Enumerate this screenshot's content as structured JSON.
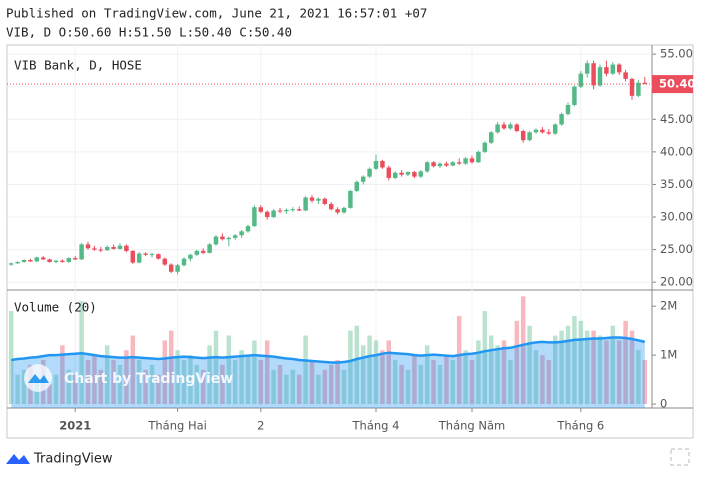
{
  "header": {
    "published": "Published on TradingView.com, June 21, 2021 16:57:01 +07",
    "ohlc": "VIB, D O:50.60 H:51.50 L:50.40 C:50.40"
  },
  "chart_data": {
    "type": "candlestick",
    "title": "VIB Bank, D, HOSE",
    "categories": [
      null,
      null,
      null,
      null,
      null,
      null,
      null,
      null,
      null,
      null,
      "2021",
      null,
      null,
      null,
      null,
      null,
      null,
      null,
      null,
      null,
      null,
      null,
      null,
      null,
      null,
      null,
      "Tháng Hai",
      null,
      null,
      null,
      null,
      null,
      null,
      null,
      null,
      null,
      null,
      null,
      null,
      "2",
      null,
      null,
      null,
      null,
      null,
      null,
      null,
      null,
      null,
      null,
      null,
      null,
      null,
      null,
      null,
      null,
      null,
      "Tháng 4",
      null,
      null,
      null,
      null,
      null,
      null,
      null,
      null,
      null,
      null,
      null,
      null,
      null,
      null,
      "Tháng Năm",
      null,
      null,
      null,
      null,
      null,
      null,
      null,
      null,
      null,
      null,
      null,
      null,
      null,
      null,
      null,
      null,
      "Tháng 6",
      null,
      null,
      null,
      null,
      null,
      null,
      null,
      null,
      null,
      null
    ],
    "open": [
      22.7,
      22.9,
      23.1,
      23.4,
      23.2,
      23.8,
      23.5,
      23.1,
      23.3,
      23.1,
      23.7,
      23.5,
      25.8,
      25.2,
      25.0,
      24.9,
      25.4,
      25.1,
      25.6,
      24.8,
      23.0,
      24.4,
      24.2,
      24.3,
      23.6,
      22.7,
      21.6,
      22.6,
      23.6,
      24.2,
      24.8,
      24.5,
      25.8,
      27.0,
      26.6,
      26.8,
      27.2,
      27.8,
      28.6,
      31.5,
      30.8,
      30.0,
      31.0,
      30.9,
      31.1,
      31.2,
      31.0,
      33.0,
      32.5,
      32.8,
      32.0,
      31.2,
      30.7,
      31.4,
      34.0,
      35.4,
      36.2,
      37.4,
      38.6,
      37.6,
      36.0,
      36.8,
      36.5,
      36.9,
      36.2,
      37.0,
      38.4,
      37.8,
      38.2,
      37.9,
      38.4,
      38.2,
      39.0,
      38.4,
      40.0,
      41.4,
      43.0,
      44.2,
      43.6,
      44.2,
      43.2,
      41.8,
      43.0,
      43.4,
      43.0,
      42.8,
      44.2,
      45.8,
      47.2,
      50.0,
      52.0,
      53.6,
      50.2,
      53.0,
      52.0,
      53.4,
      52.2,
      51.2,
      48.6,
      50.6
    ],
    "high": [
      23.0,
      23.2,
      23.5,
      23.6,
      23.9,
      24.0,
      23.6,
      23.4,
      23.5,
      23.8,
      24.0,
      26.0,
      26.2,
      25.6,
      25.4,
      25.6,
      25.8,
      26.0,
      25.8,
      24.9,
      24.6,
      24.6,
      24.5,
      24.4,
      23.8,
      22.9,
      22.8,
      23.8,
      24.4,
      25.0,
      25.2,
      26.0,
      27.2,
      27.5,
      27.0,
      27.4,
      28.0,
      28.8,
      31.8,
      31.8,
      31.0,
      31.2,
      31.4,
      31.3,
      31.5,
      31.6,
      33.2,
      33.4,
      33.0,
      33.0,
      32.3,
      31.5,
      31.6,
      34.2,
      35.6,
      36.4,
      37.6,
      39.6,
      38.8,
      37.9,
      37.0,
      37.2,
      37.0,
      37.1,
      37.2,
      38.6,
      38.6,
      38.4,
      38.5,
      38.6,
      39.0,
      39.2,
      39.4,
      40.2,
      41.6,
      43.2,
      44.6,
      44.6,
      44.5,
      44.4,
      43.4,
      43.2,
      43.6,
      43.8,
      43.5,
      44.4,
      46.0,
      47.6,
      50.2,
      52.4,
      54.0,
      54.0,
      53.4,
      54.0,
      53.8,
      53.6,
      52.6,
      51.4,
      51.0,
      51.5
    ],
    "low": [
      22.5,
      22.8,
      23.0,
      23.1,
      23.1,
      23.4,
      23.0,
      22.9,
      23.0,
      23.0,
      23.4,
      23.4,
      25.0,
      24.8,
      24.6,
      24.8,
      25.0,
      25.0,
      24.6,
      22.8,
      22.9,
      24.0,
      23.8,
      23.5,
      22.5,
      21.4,
      21.2,
      22.4,
      23.2,
      24.0,
      24.3,
      24.4,
      25.6,
      26.4,
      25.5,
      26.5,
      26.8,
      27.6,
      28.5,
      30.6,
      29.6,
      29.8,
      30.6,
      30.5,
      30.8,
      30.9,
      30.9,
      32.2,
      32.0,
      31.8,
      31.0,
      30.4,
      30.5,
      31.3,
      33.8,
      35.0,
      36.0,
      37.2,
      37.4,
      35.6,
      35.8,
      36.2,
      36.3,
      36.0,
      36.0,
      36.8,
      37.6,
      37.5,
      37.7,
      37.8,
      38.0,
      38.0,
      38.2,
      38.3,
      39.8,
      41.2,
      42.8,
      43.4,
      43.4,
      43.0,
      41.4,
      41.6,
      42.8,
      42.8,
      42.6,
      42.6,
      44.0,
      45.6,
      47.0,
      49.8,
      51.4,
      49.6,
      50.0,
      51.6,
      51.8,
      51.8,
      50.8,
      48.0,
      48.4,
      50.4
    ],
    "close": [
      22.9,
      23.1,
      23.4,
      23.2,
      23.8,
      23.5,
      23.1,
      23.3,
      23.1,
      23.7,
      23.5,
      25.8,
      25.2,
      25.0,
      24.9,
      25.4,
      25.1,
      25.6,
      24.8,
      23.0,
      24.4,
      24.2,
      24.3,
      23.6,
      22.7,
      21.6,
      22.6,
      23.6,
      24.2,
      24.8,
      24.5,
      25.8,
      27.0,
      26.6,
      26.8,
      27.2,
      27.8,
      28.6,
      31.5,
      30.8,
      30.0,
      31.0,
      30.9,
      31.1,
      31.2,
      31.0,
      33.0,
      32.5,
      32.8,
      32.0,
      31.2,
      30.7,
      31.4,
      34.0,
      35.4,
      36.2,
      37.4,
      38.6,
      37.6,
      36.0,
      36.8,
      36.5,
      36.9,
      36.2,
      37.0,
      38.4,
      37.8,
      38.2,
      37.9,
      38.4,
      38.2,
      39.0,
      38.4,
      40.0,
      41.4,
      43.0,
      44.2,
      43.6,
      44.2,
      43.2,
      41.8,
      43.0,
      43.4,
      43.0,
      42.8,
      44.2,
      45.8,
      47.2,
      50.0,
      52.0,
      53.6,
      50.2,
      53.0,
      52.0,
      53.4,
      52.2,
      51.2,
      48.6,
      50.6,
      50.4
    ],
    "up_color": "#53b987",
    "down_color": "#eb4d5c",
    "grid": true,
    "ylim": [
      18.8,
      56.4
    ],
    "yticks": [
      {
        "value": 20,
        "label": "20.00"
      },
      {
        "value": 25,
        "label": "25.00"
      },
      {
        "value": 30,
        "label": "30.00"
      },
      {
        "value": 35,
        "label": "35.00"
      },
      {
        "value": 40,
        "label": "40.00"
      },
      {
        "value": 45,
        "label": "45.00"
      },
      {
        "value": 50,
        "label": "50.00"
      },
      {
        "value": 55,
        "label": "55.00"
      }
    ],
    "last_price": {
      "value": 50.4,
      "label": "50.40"
    },
    "volume": {
      "title": "Volume (20)",
      "ma_color": "#2196f3",
      "values": [
        1900000,
        600000,
        700000,
        800000,
        500000,
        900000,
        400000,
        600000,
        1200000,
        700000,
        600000,
        2100000,
        900000,
        1000000,
        700000,
        1200000,
        900000,
        800000,
        1100000,
        1400000,
        900000,
        700000,
        800000,
        600000,
        1300000,
        1500000,
        1100000,
        900000,
        1000000,
        800000,
        700000,
        1200000,
        1500000,
        800000,
        1400000,
        900000,
        1100000,
        1000000,
        1300000,
        900000,
        1300000,
        700000,
        800000,
        600000,
        700000,
        600000,
        1400000,
        900000,
        600000,
        700000,
        800000,
        900000,
        700000,
        1500000,
        1600000,
        1200000,
        1400000,
        1300000,
        1100000,
        1300000,
        900000,
        800000,
        700000,
        1000000,
        800000,
        1200000,
        900000,
        800000,
        1000000,
        900000,
        1800000,
        1100000,
        900000,
        1300000,
        1900000,
        1400000,
        1200000,
        1300000,
        900000,
        1700000,
        2200000,
        1600000,
        1100000,
        1000000,
        900000,
        1400000,
        1500000,
        1600000,
        1800000,
        1700000,
        1500000,
        1500000,
        1400000,
        1300000,
        1600000,
        1300000,
        1700000,
        1500000,
        1100000,
        900000
      ],
      "ma": [
        900000,
        920000,
        930000,
        950000,
        960000,
        980000,
        1000000,
        1000000,
        1010000,
        1020000,
        1030000,
        1040000,
        1020000,
        1000000,
        980000,
        970000,
        960000,
        950000,
        950000,
        960000,
        950000,
        940000,
        930000,
        920000,
        930000,
        950000,
        960000,
        970000,
        960000,
        950000,
        940000,
        950000,
        960000,
        950000,
        960000,
        970000,
        980000,
        990000,
        1000000,
        990000,
        980000,
        970000,
        950000,
        930000,
        920000,
        900000,
        890000,
        880000,
        870000,
        860000,
        850000,
        850000,
        860000,
        880000,
        920000,
        950000,
        980000,
        1000000,
        1030000,
        1050000,
        1040000,
        1030000,
        1020000,
        1000000,
        990000,
        1000000,
        1010000,
        1000000,
        990000,
        980000,
        1000000,
        1020000,
        1030000,
        1050000,
        1080000,
        1100000,
        1120000,
        1140000,
        1150000,
        1180000,
        1210000,
        1240000,
        1260000,
        1270000,
        1260000,
        1260000,
        1270000,
        1290000,
        1310000,
        1320000,
        1330000,
        1340000,
        1340000,
        1350000,
        1360000,
        1360000,
        1350000,
        1330000,
        1300000,
        1270000
      ],
      "ylim": [
        -80000,
        2330000
      ],
      "yticks": [
        {
          "value": 0,
          "label": "0"
        },
        {
          "value": 1000000,
          "label": "1M"
        },
        {
          "value": 2000000,
          "label": "2M"
        }
      ]
    }
  },
  "watermark": "Chart by TradingView",
  "footer": "TradingView"
}
